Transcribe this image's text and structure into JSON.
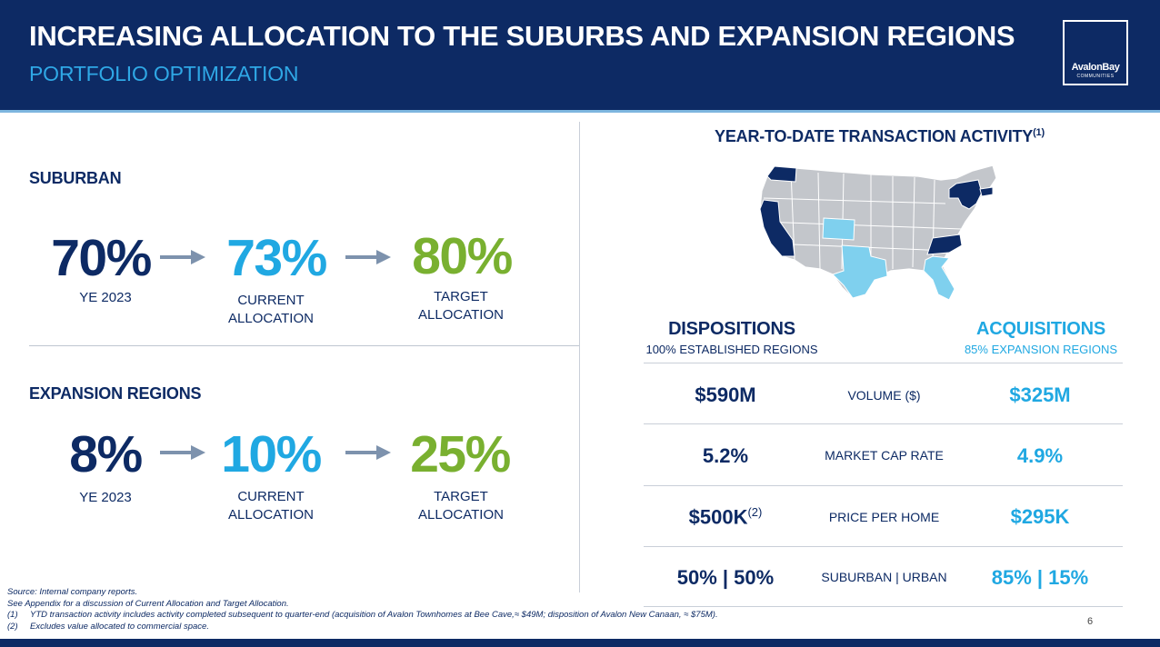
{
  "header": {
    "title": "INCREASING ALLOCATION TO THE SUBURBS AND EXPANSION REGIONS",
    "subtitle": "PORTFOLIO OPTIMIZATION",
    "logo_text": "AvalonBay",
    "logo_subtext": "COMMUNITIES"
  },
  "suburban": {
    "label": "SUBURBAN",
    "ye_value": "70%",
    "ye_label": "YE 2023",
    "current_value": "73%",
    "current_label_1": "CURRENT",
    "current_label_2": "ALLOCATION",
    "target_value": "80%",
    "target_label_1": "TARGET",
    "target_label_2": "ALLOCATION"
  },
  "expansion": {
    "label": "EXPANSION REGIONS",
    "ye_value": "8%",
    "ye_label": "YE 2023",
    "current_value": "10%",
    "current_label_1": "CURRENT",
    "current_label_2": "ALLOCATION",
    "target_value": "25%",
    "target_label_1": "TARGET",
    "target_label_2": "ALLOCATION"
  },
  "transactions": {
    "title": "YEAR-TO-DATE TRANSACTION ACTIVITY",
    "title_note": "(1)",
    "dispositions_heading": "DISPOSITIONS",
    "dispositions_sub": "100% ESTABLISHED REGIONS",
    "acquisitions_heading": "ACQUISITIONS",
    "acquisitions_sub": "85% EXPANSION REGIONS",
    "rows": [
      {
        "disposition": "$590M",
        "metric": "VOLUME ($)",
        "acquisition": "$325M",
        "note": ""
      },
      {
        "disposition": "5.2%",
        "metric": "MARKET CAP RATE",
        "acquisition": "4.9%",
        "note": ""
      },
      {
        "disposition": "$500K",
        "metric": "PRICE PER HOME",
        "acquisition": "$295K",
        "note": "(2)"
      },
      {
        "disposition": "50% | 50%",
        "metric": "SUBURBAN | URBAN",
        "acquisition": "85% | 15%",
        "note": ""
      }
    ]
  },
  "footnotes": {
    "source": "Source:  Internal company reports.",
    "appendix": "See Appendix for a discussion of Current Allocation and Target Allocation.",
    "n1_num": "(1)",
    "n1_text": "YTD transaction activity includes activity completed subsequent to quarter-end (acquisition of Avalon Townhomes at Bee Cave,≈ $49M; disposition of Avalon New Canaan, ≈ $75M).",
    "n2_num": "(2)",
    "n2_text": "Excludes value allocated to commercial space."
  },
  "page_number": "6",
  "colors": {
    "navy": "#0d2a64",
    "cyan": "#20a8e2",
    "green": "#79b030",
    "map_disposition": "#0d2a64",
    "map_acquisition": "#7fd0ee",
    "map_other": "#c3c6cb"
  }
}
